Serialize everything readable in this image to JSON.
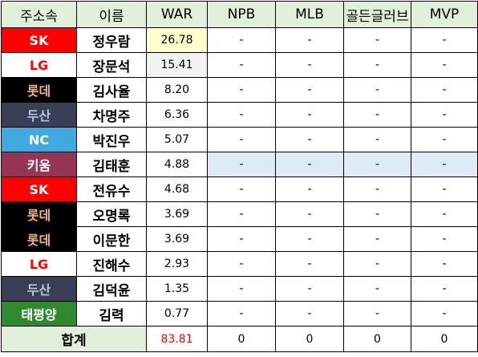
{
  "headers": [
    "주소속",
    "이름",
    "WAR",
    "NPB",
    "MLB",
    "골든글러브",
    "MVP"
  ],
  "team_styles": {
    "SK": {
      "bg": "#ff0000",
      "color": "#ffffff"
    },
    "LG": {
      "bg": "#ffffff",
      "color": "#ff0000"
    },
    "롯데": {
      "bg": "#000000",
      "color": "#f4b183"
    },
    "두산": {
      "bg": "#3a3f55",
      "color": "#b4c7e7"
    },
    "NC": {
      "bg": "#3fa9e0",
      "color": "#ffffff"
    },
    "키움": {
      "bg": "#953553",
      "color": "#ffffff"
    },
    "태평양": {
      "bg": "#2f8a2f",
      "color": "#ffffff"
    }
  },
  "rows": [
    {
      "team": "SK",
      "name": "정우람",
      "war": "26.78",
      "npb": "-",
      "mlb": "-",
      "gg": "-",
      "mvp": "-"
    },
    {
      "team": "LG",
      "name": "장문석",
      "war": "15.41",
      "npb": "-",
      "mlb": "-",
      "gg": "-",
      "mvp": "-"
    },
    {
      "team": "롯데",
      "name": "김사율",
      "war": "8.20",
      "npb": "-",
      "mlb": "-",
      "gg": "-",
      "mvp": "-"
    },
    {
      "team": "두산",
      "name": "차명주",
      "war": "6.36",
      "npb": "-",
      "mlb": "-",
      "gg": "-",
      "mvp": "-"
    },
    {
      "team": "NC",
      "name": "박진우",
      "war": "5.07",
      "npb": "-",
      "mlb": "-",
      "gg": "-",
      "mvp": "-"
    },
    {
      "team": "키움",
      "name": "김태훈",
      "war": "4.88",
      "npb": "-",
      "mlb": "-",
      "gg": "-",
      "mvp": "-"
    },
    {
      "team": "SK",
      "name": "전유수",
      "war": "4.68",
      "npb": "-",
      "mlb": "-",
      "gg": "-",
      "mvp": "-"
    },
    {
      "team": "롯데",
      "name": "오명록",
      "war": "3.69",
      "npb": "-",
      "mlb": "-",
      "gg": "-",
      "mvp": "-"
    },
    {
      "team": "롯데",
      "name": "이문한",
      "war": "3.69",
      "npb": "-",
      "mlb": "-",
      "gg": "-",
      "mvp": "-"
    },
    {
      "team": "LG",
      "name": "진해수",
      "war": "2.93",
      "npb": "-",
      "mlb": "-",
      "gg": "-",
      "mvp": "-"
    },
    {
      "team": "두산",
      "name": "김덕윤",
      "war": "1.35",
      "npb": "-",
      "mlb": "-",
      "gg": "-",
      "mvp": "-"
    },
    {
      "team": "태평양",
      "name": "김력",
      "war": "0.77",
      "npb": "-",
      "mlb": "-",
      "gg": "-",
      "mvp": "-"
    }
  ],
  "total": {
    "label": "합계",
    "war": "83.81",
    "npb": "0",
    "mlb": "0",
    "gg": "0",
    "mvp": "0"
  }
}
